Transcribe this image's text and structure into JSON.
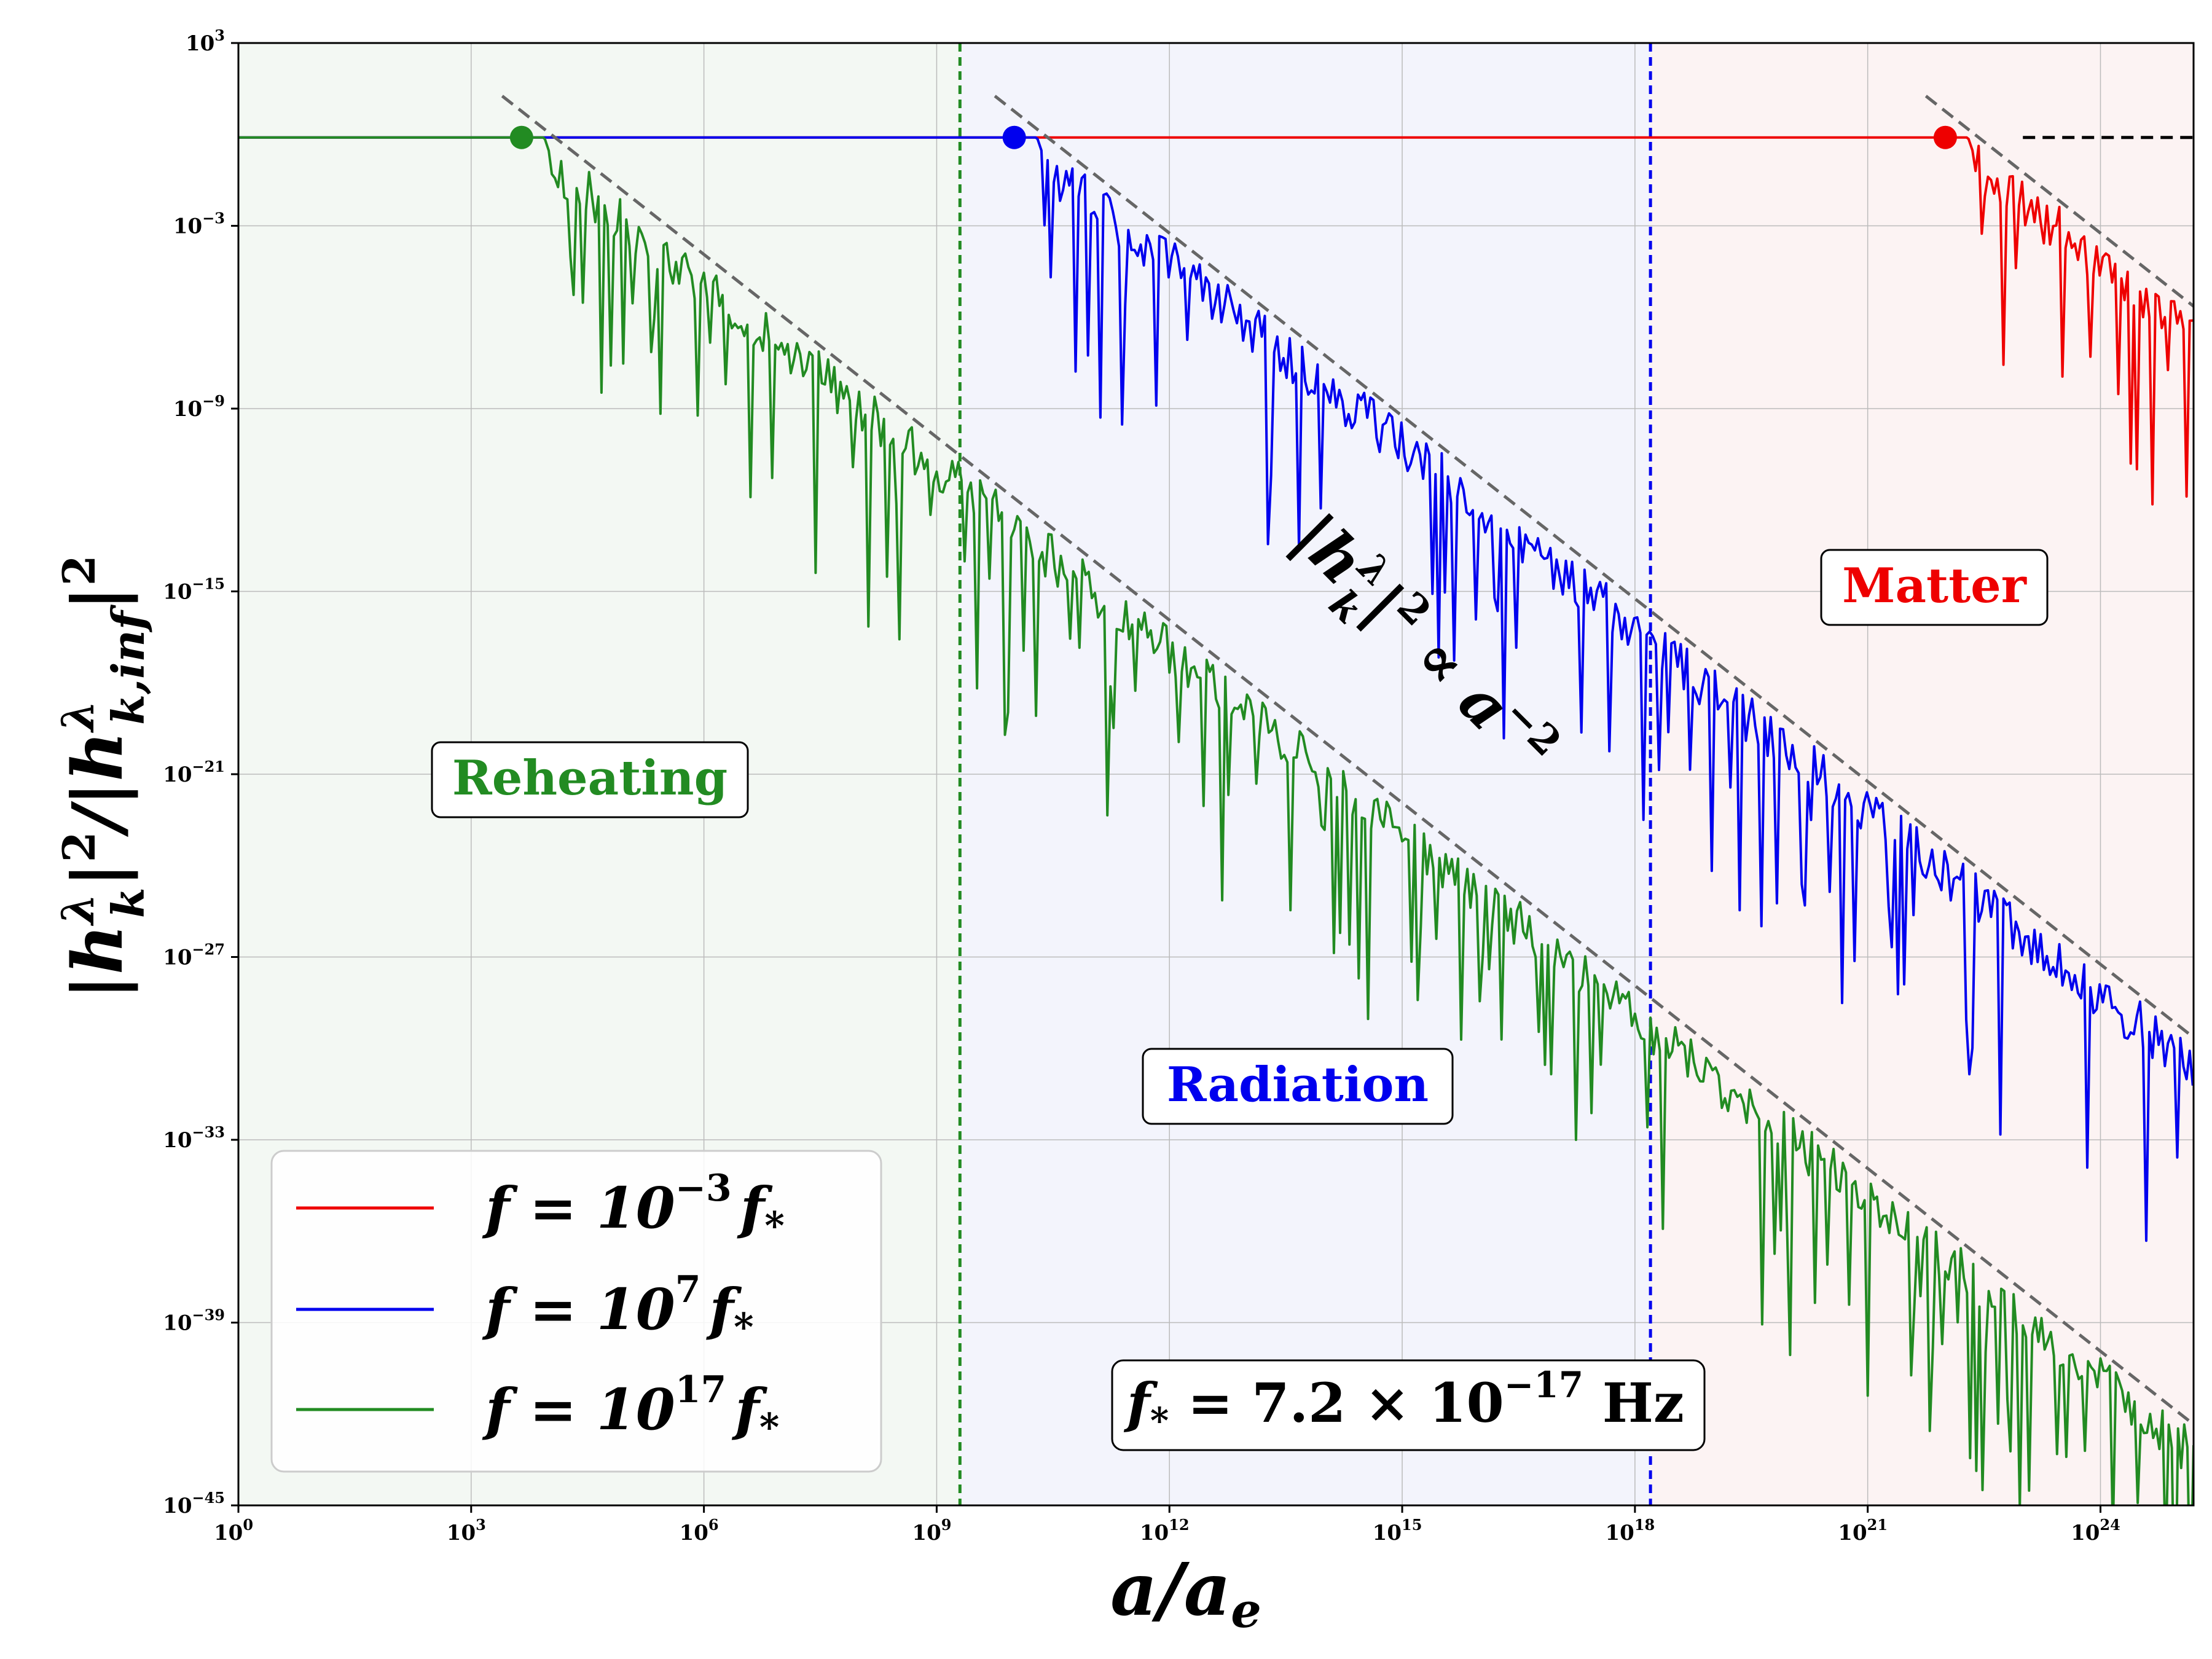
{
  "chart_data": {
    "type": "line",
    "xscale": "log",
    "yscale": "log",
    "xlabel": "a/a",
    "xlabel_sub": "e",
    "ylabel": "|h_k^λ|^2 / |h_{k,inf}^λ|^2",
    "xlim_log10": [
      0,
      25.2
    ],
    "ylim_log10": [
      -45,
      3
    ],
    "x_ticks": [
      {
        "base": "10",
        "exp": "0",
        "value": 0
      },
      {
        "base": "10",
        "exp": "3",
        "value": 3
      },
      {
        "base": "10",
        "exp": "6",
        "value": 6
      },
      {
        "base": "10",
        "exp": "9",
        "value": 9
      },
      {
        "base": "10",
        "exp": "12",
        "value": 12
      },
      {
        "base": "10",
        "exp": "15",
        "value": 15
      },
      {
        "base": "10",
        "exp": "18",
        "value": 18
      },
      {
        "base": "10",
        "exp": "21",
        "value": 21
      },
      {
        "base": "10",
        "exp": "24",
        "value": 24
      }
    ],
    "y_ticks": [
      {
        "base": "10",
        "exp": "3",
        "value": 3
      },
      {
        "base": "10",
        "exp": "−3",
        "value": -3
      },
      {
        "base": "10",
        "exp": "−9",
        "value": -9
      },
      {
        "base": "10",
        "exp": "−15",
        "value": -15
      },
      {
        "base": "10",
        "exp": "−21",
        "value": -21
      },
      {
        "base": "10",
        "exp": "−27",
        "value": -27
      },
      {
        "base": "10",
        "exp": "−33",
        "value": -33
      },
      {
        "base": "10",
        "exp": "−39",
        "value": -39
      },
      {
        "base": "10",
        "exp": "−45",
        "value": -45
      }
    ],
    "regions": [
      {
        "name": "Reheating",
        "x_from_log10": 0,
        "x_to_log10": 9.3,
        "color": "#228B22",
        "fill": "#f3f8f3",
        "label_at_log10": [
          4.6,
          -20.1
        ]
      },
      {
        "name": "Radiation",
        "x_from_log10": 9.3,
        "x_to_log10": 18.2,
        "color": "#0000ee",
        "fill": "#f3f4fc",
        "label_at_log10": [
          13.7,
          -31.9
        ]
      },
      {
        "name": "Matter",
        "x_from_log10": 18.2,
        "x_to_log10": 25.2,
        "color": "#ee0000",
        "fill": "#fcf3f3",
        "label_at_log10": [
          22.3,
          -14.9
        ]
      }
    ],
    "boundaries": [
      {
        "x_log10": 9.3,
        "color": "#228B22"
      },
      {
        "x_log10": 18.2,
        "color": "#0000ee"
      }
    ],
    "series": [
      {
        "name": "f = 10^-3 f*",
        "legend_base": "f = 10",
        "legend_exp": "−3",
        "legend_tail": "f",
        "legend_sub": "*",
        "color": "#ee0000",
        "plateau_log10": -0.1,
        "horizon_exit_log10": 22.0,
        "slope": -2,
        "end_log10": 25.2,
        "seed": 7
      },
      {
        "name": "f = 10^7 f*",
        "legend_base": "f = 10",
        "legend_exp": "7",
        "legend_tail": "f",
        "legend_sub": "*",
        "color": "#0000ee",
        "plateau_log10": -0.1,
        "horizon_exit_log10": 10.0,
        "slope": -2,
        "end_log10": 25.2,
        "seed": 13
      },
      {
        "name": "f = 10^17 f*",
        "legend_base": "f = 10",
        "legend_exp": "17",
        "legend_tail": "f",
        "legend_sub": "*",
        "color": "#228B22",
        "plateau_log10": -0.1,
        "horizon_exit_log10": 3.65,
        "slope": -2,
        "end_log10": 25.2,
        "seed": 29
      }
    ],
    "reference_line": {
      "style": "dashed",
      "color": "#000000",
      "y_log10": -0.1,
      "from_log10": 23.0,
      "to_log10": 25.2
    },
    "asymptote_style": {
      "style": "dashed",
      "color": "#666666"
    },
    "annotation": {
      "text": "|h_k^λ|^2 ∝ a^-2",
      "parts": {
        "lhs": "|h",
        "lhs_sup": "λ",
        "lhs_sub": "k",
        "lhs_tail": "|",
        "lhs_exp": "2",
        "op": " ∝ a",
        "rhs_exp": "−2"
      }
    },
    "fstar_box": {
      "lhs": "f",
      "lhs_sub": "*",
      "mid": " = 7.2 × 10",
      "exp": "−17",
      "unit": " Hz"
    },
    "legend_position": "lower-left",
    "grid": true
  }
}
